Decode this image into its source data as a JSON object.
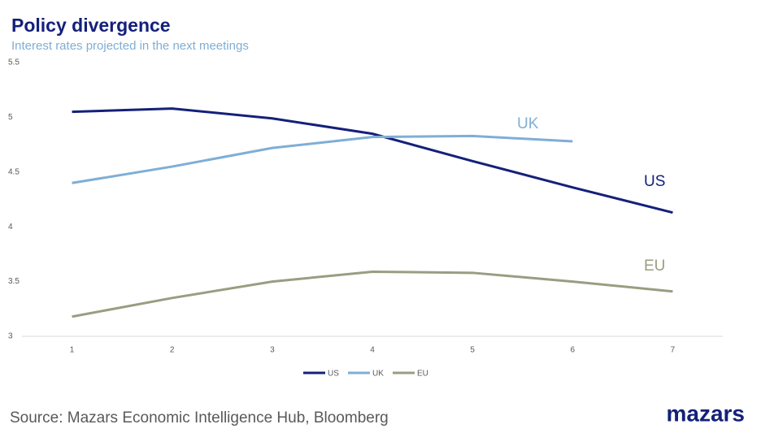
{
  "chart_data": {
    "type": "line",
    "title": "Policy divergence",
    "subtitle": "Interest rates projected in the next meetings",
    "source": "Source: Mazars Economic Intelligence Hub, Bloomberg",
    "logo": "mazars",
    "x": [
      1,
      2,
      3,
      4,
      5,
      6,
      7
    ],
    "xlim": [
      0.5,
      7.5
    ],
    "xticks": [
      1,
      2,
      3,
      4,
      5,
      6,
      7
    ],
    "ylim": [
      3,
      5.5
    ],
    "yticks": [
      3,
      3.5,
      4,
      4.5,
      5,
      5.5
    ],
    "grid": false,
    "legend": "bottom",
    "series": [
      {
        "name": "US",
        "color": "#14207a",
        "values": [
          5.05,
          5.08,
          4.99,
          4.85,
          4.6,
          4.36,
          4.13
        ]
      },
      {
        "name": "UK",
        "color": "#7eaed6",
        "values": [
          4.4,
          4.55,
          4.72,
          4.82,
          4.83,
          4.78,
          null
        ]
      },
      {
        "name": "EU",
        "color": "#9a9d80",
        "values": [
          3.18,
          3.35,
          3.5,
          3.59,
          3.58,
          3.5,
          3.41
        ]
      }
    ]
  }
}
